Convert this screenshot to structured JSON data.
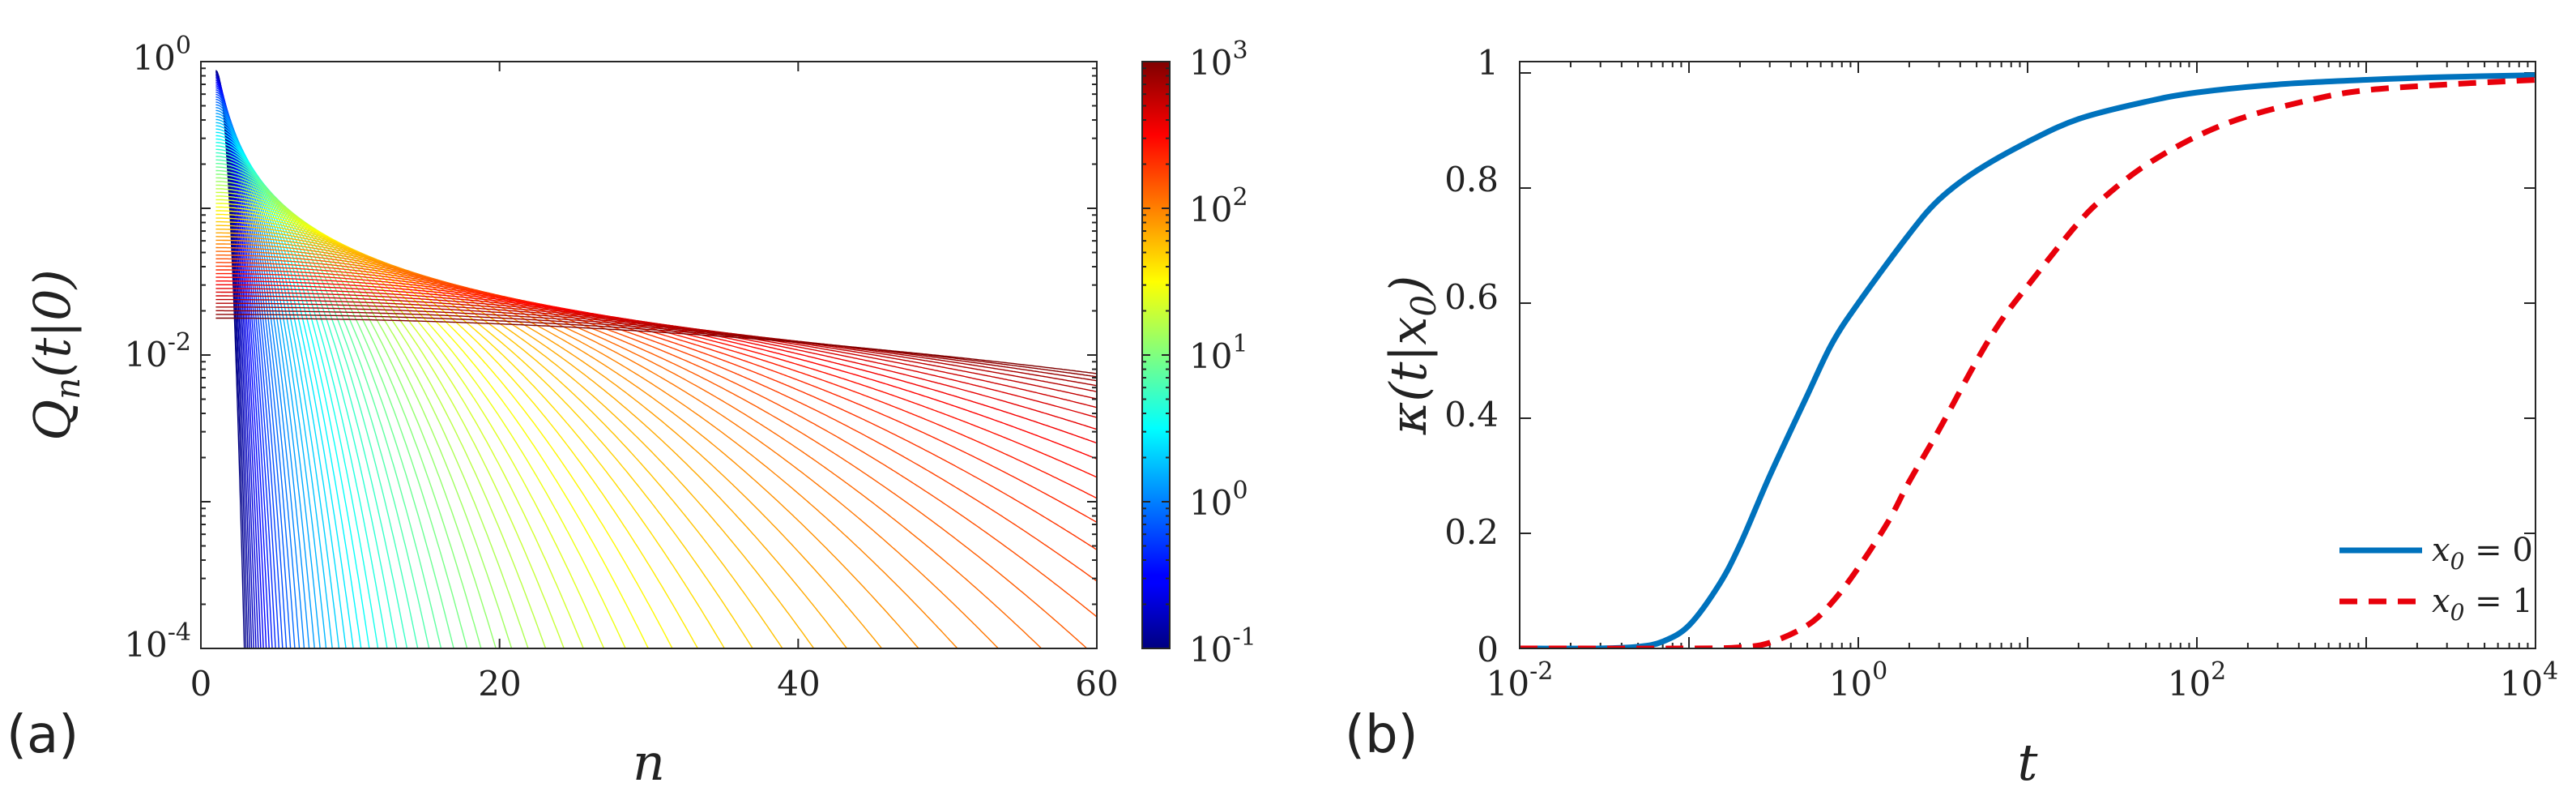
{
  "chart_data": [
    {
      "panel_label": "(a)",
      "type": "line",
      "xlabel": "n",
      "ylabel": "Q_n(t|0)",
      "ylabel_parts": {
        "base": "Q",
        "sub": "n",
        "args": "(t|0)"
      },
      "xlim": [
        0,
        60
      ],
      "ylim": [
        0.0001,
        1
      ],
      "yscale": "log",
      "x_ticks": [
        0,
        20,
        40,
        60
      ],
      "x_tick_labels": [
        "0",
        "20",
        "40",
        "60"
      ],
      "y_ticks": [
        0.0001,
        0.01,
        1
      ],
      "y_tick_labels": [
        {
          "base": "10",
          "exp": "-4"
        },
        {
          "base": "10",
          "exp": "-2"
        },
        {
          "base": "10",
          "exp": "0"
        }
      ],
      "series_description": "family of curves Q_n(t|0) vs n, one per time t, colored by t",
      "t_range": [
        0.1,
        1000
      ],
      "num_curves": 80,
      "colormap": "jet",
      "colorbar": {
        "scale": "log",
        "range": [
          0.1,
          1000
        ],
        "tick_labels": [
          {
            "base": "10",
            "exp": "3"
          },
          {
            "base": "10",
            "exp": "2"
          },
          {
            "base": "10",
            "exp": "1"
          },
          {
            "base": "10",
            "exp": "0"
          },
          {
            "base": "10",
            "exp": "-1"
          }
        ]
      }
    },
    {
      "panel_label": "(b)",
      "type": "line",
      "xlabel": "t",
      "ylabel": "κ(t|x_0)",
      "ylabel_parts": {
        "pre": "κ(t|x",
        "sub": "0",
        "post": ")"
      },
      "xscale": "log",
      "xlim": [
        0.01,
        10000
      ],
      "ylim": [
        0,
        1
      ],
      "x_tick_labels": [
        {
          "base": "10",
          "exp": "-2"
        },
        {
          "base": "10",
          "exp": "0"
        },
        {
          "base": "10",
          "exp": "2"
        },
        {
          "base": "10",
          "exp": "4"
        }
      ],
      "y_ticks": [
        0,
        0.2,
        0.4,
        0.6,
        0.8,
        1
      ],
      "y_tick_labels": [
        "0",
        "0.2",
        "0.4",
        "0.6",
        "0.8",
        "1"
      ],
      "legend_position": "bottom-right",
      "series": [
        {
          "name": "x_0 = 0",
          "legend_label": {
            "pre": "x",
            "sub": "0",
            "post": " = 0"
          },
          "color": "#0072BD",
          "style": "solid",
          "x": [
            0.01,
            0.03,
            0.05,
            0.07,
            0.1,
            0.15,
            0.2,
            0.3,
            0.5,
            0.7,
            1,
            2,
            3,
            5,
            10,
            20,
            50,
            100,
            300,
            1000,
            3000,
            10000
          ],
          "y": [
            0,
            0,
            0.003,
            0.012,
            0.04,
            0.11,
            0.18,
            0.3,
            0.44,
            0.53,
            0.6,
            0.72,
            0.78,
            0.83,
            0.88,
            0.92,
            0.95,
            0.966,
            0.98,
            0.988,
            0.993,
            0.996
          ]
        },
        {
          "name": "x_0 = 1",
          "legend_label": {
            "pre": "x",
            "sub": "0",
            "post": " = 1"
          },
          "color": "#E8000B",
          "style": "dashed",
          "x": [
            0.01,
            0.1,
            0.2,
            0.3,
            0.5,
            0.7,
            1,
            1.5,
            2,
            3,
            5,
            7,
            10,
            20,
            30,
            50,
            100,
            200,
            500,
            1000,
            3000,
            10000
          ],
          "y": [
            0,
            0,
            0.002,
            0.01,
            0.04,
            0.08,
            0.14,
            0.22,
            0.29,
            0.38,
            0.5,
            0.57,
            0.63,
            0.74,
            0.79,
            0.84,
            0.89,
            0.925,
            0.955,
            0.97,
            0.98,
            0.988
          ]
        }
      ]
    }
  ]
}
